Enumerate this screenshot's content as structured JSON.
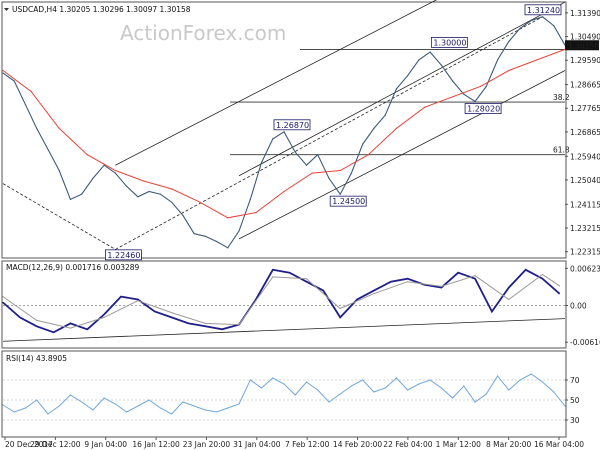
{
  "watermark": "ActionForex.com",
  "chart_data": [
    {
      "type": "line",
      "title": "USDCAD,H4  1.30205 1.30296 1.30097 1.30158",
      "x_ticks": [
        "20 Dec 2017",
        "29 Dec 12:00",
        "9 Jan 04:00",
        "16 Jan 12:00",
        "23 Jan 20:00",
        "31 Jan 04:00",
        "7 Feb 12:00",
        "14 Feb 20:00",
        "22 Feb 04:00",
        "1 Mar 12:00",
        "8 Mar 20:00",
        "16 Mar 04:00"
      ],
      "y_ticks": [
        "1.31390",
        "1.30490",
        "1.29590",
        "1.28665",
        "1.27765",
        "1.26865",
        "1.25940",
        "1.25040",
        "1.24115",
        "1.23215",
        "1.22315"
      ],
      "ylim": [
        1.2215,
        1.3165
      ],
      "last_price": "1.30158",
      "series": [
        {
          "name": "USDCAD,H4",
          "color": "#3d5a7a",
          "x": [
            0,
            2,
            4,
            6,
            8,
            10,
            12,
            14,
            16,
            18,
            20,
            22,
            24,
            26,
            28,
            30,
            32,
            34,
            36,
            38,
            40,
            42,
            44,
            46,
            48,
            50,
            52,
            54,
            56,
            58,
            60,
            62,
            64,
            66,
            68,
            70,
            72,
            74,
            76,
            78,
            80,
            82,
            84,
            86,
            88,
            90,
            92,
            94,
            96,
            98,
            100
          ],
          "values": [
            1.291,
            1.288,
            1.279,
            1.27,
            1.262,
            1.254,
            1.243,
            1.245,
            1.251,
            1.256,
            1.253,
            1.248,
            1.244,
            1.246,
            1.245,
            1.242,
            1.237,
            1.23,
            1.229,
            1.227,
            1.2246,
            1.231,
            1.243,
            1.257,
            1.266,
            1.2687,
            1.261,
            1.256,
            1.26,
            1.251,
            1.245,
            1.253,
            1.264,
            1.27,
            1.275,
            1.285,
            1.29,
            1.296,
            1.299,
            1.294,
            1.288,
            1.283,
            1.2802,
            1.286,
            1.296,
            1.303,
            1.308,
            1.311,
            1.3124,
            1.309,
            1.3016
          ]
        },
        {
          "name": "MA",
          "color": "#e8443a",
          "x": [
            0,
            5,
            10,
            15,
            20,
            25,
            30,
            35,
            40,
            45,
            50,
            55,
            60,
            65,
            70,
            75,
            80,
            85,
            90,
            95,
            100
          ],
          "values": [
            1.292,
            1.284,
            1.27,
            1.26,
            1.254,
            1.25,
            1.247,
            1.242,
            1.236,
            1.238,
            1.246,
            1.253,
            1.254,
            1.26,
            1.27,
            1.278,
            1.282,
            1.286,
            1.292,
            1.296,
            1.3
          ]
        }
      ],
      "levels": [
        {
          "value": 1.28,
          "label": "38.2"
        },
        {
          "value": 1.26,
          "label": "61.8"
        },
        {
          "value": 1.3,
          "label": ""
        }
      ],
      "trend_lines": [
        {
          "x": [
            42,
            100
          ],
          "values": [
            1.228,
            1.292
          ]
        },
        {
          "x": [
            42,
            100
          ],
          "values": [
            1.252,
            1.318
          ]
        },
        {
          "x": [
            20,
            100
          ],
          "values": [
            1.256,
            1.344
          ]
        },
        {
          "x": [
            0,
            20
          ],
          "values": [
            1.249,
            1.224
          ]
        },
        {
          "x": [
            20,
            96
          ],
          "values": [
            1.224,
            1.3124
          ]
        }
      ],
      "annotations": [
        {
          "x": 20,
          "value": 1.2246,
          "text": "1.22460"
        },
        {
          "x": 50,
          "value": 1.2687,
          "text": "1.26870"
        },
        {
          "x": 60,
          "value": 1.245,
          "text": "1.24500"
        },
        {
          "x": 78,
          "value": 1.3,
          "text": "1.30000"
        },
        {
          "x": 84,
          "value": 1.2802,
          "text": "1.28020"
        },
        {
          "x": 96,
          "value": 1.3124,
          "text": "1.31240"
        }
      ]
    },
    {
      "type": "line",
      "title": "MACD(12,26,9) 0.001716 0.003289",
      "y_ticks": [
        "0.006232",
        "0.00",
        "-0.006163"
      ],
      "ylim": [
        -0.0068,
        0.0068
      ],
      "series": [
        {
          "name": "MACD",
          "color": "#1e1e8c",
          "x": [
            0,
            3,
            6,
            9,
            12,
            15,
            18,
            21,
            24,
            27,
            30,
            33,
            36,
            39,
            42,
            45,
            48,
            51,
            54,
            57,
            60,
            63,
            66,
            69,
            72,
            75,
            78,
            81,
            84,
            87,
            90,
            93,
            96,
            99
          ],
          "values": [
            0.0005,
            -0.002,
            -0.0035,
            -0.0045,
            -0.003,
            -0.004,
            -0.0015,
            0.0015,
            0.001,
            -0.001,
            -0.002,
            -0.003,
            -0.0035,
            -0.004,
            -0.0032,
            0.001,
            0.006,
            0.0055,
            0.004,
            0.0025,
            -0.002,
            0.001,
            0.0025,
            0.004,
            0.0045,
            0.0035,
            0.003,
            0.0055,
            0.0045,
            -0.001,
            0.003,
            0.006,
            0.0045,
            0.002
          ]
        },
        {
          "name": "Signal",
          "color": "#9a9a9a",
          "x": [
            0,
            6,
            12,
            18,
            24,
            30,
            36,
            42,
            48,
            54,
            60,
            66,
            72,
            78,
            84,
            90,
            96,
            99
          ],
          "values": [
            0.0015,
            -0.0025,
            -0.0038,
            -0.002,
            0.0008,
            -0.0012,
            -0.003,
            -0.0032,
            0.0048,
            0.0045,
            -0.0005,
            0.002,
            0.004,
            0.0032,
            0.005,
            0.001,
            0.0052,
            0.0033
          ]
        }
      ],
      "trend_lines": [
        {
          "x": [
            0,
            100
          ],
          "values": [
            -0.006,
            -0.0022
          ]
        }
      ]
    },
    {
      "type": "line",
      "title": "RSI(14) 43.8905",
      "y_ticks": [
        "70",
        "50",
        "30"
      ],
      "ylim": [
        15,
        95
      ],
      "series": [
        {
          "name": "RSI",
          "color": "#6fa8dc",
          "x": [
            0,
            2,
            4,
            6,
            8,
            10,
            12,
            14,
            16,
            18,
            20,
            22,
            24,
            26,
            28,
            30,
            32,
            34,
            36,
            38,
            40,
            42,
            44,
            46,
            48,
            50,
            52,
            54,
            56,
            58,
            60,
            62,
            64,
            66,
            68,
            70,
            72,
            74,
            76,
            78,
            80,
            82,
            84,
            86,
            88,
            90,
            92,
            94,
            96,
            98,
            100
          ],
          "values": [
            45,
            38,
            42,
            50,
            36,
            44,
            55,
            48,
            40,
            52,
            46,
            38,
            44,
            50,
            42,
            36,
            48,
            44,
            40,
            38,
            42,
            46,
            70,
            62,
            72,
            66,
            55,
            68,
            60,
            48,
            56,
            64,
            70,
            58,
            62,
            72,
            60,
            66,
            70,
            62,
            52,
            64,
            48,
            56,
            74,
            60,
            70,
            76,
            68,
            58,
            44
          ]
        }
      ]
    }
  ]
}
